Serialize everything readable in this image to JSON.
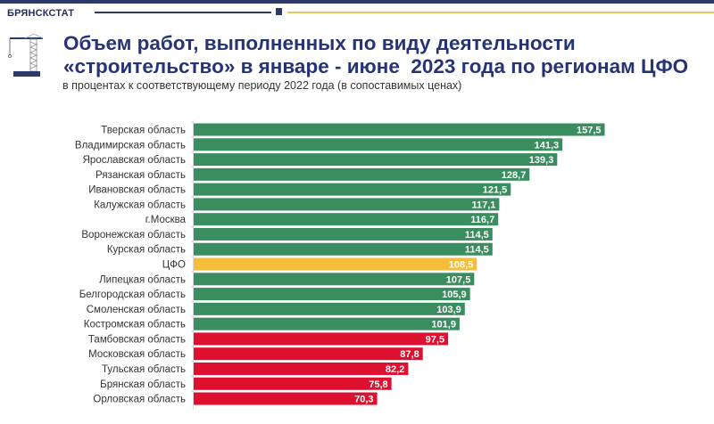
{
  "header": {
    "brand": "БРЯНСКСТАТ",
    "logo_icon": "crane-icon",
    "title_line1": "Объем работ, выполненных по виду деятельности",
    "title_line2": "«строительство» в январе - июне  2023 года по регионам ЦФО",
    "subtitle": "в процентах к соответствующему периоду 2022 года (в сопоставимых ценах)"
  },
  "colors": {
    "growth": "#3a8d5e",
    "average": "#f5bd3c",
    "decline": "#de1030",
    "title": "#263476"
  },
  "chart_data": {
    "type": "bar",
    "orientation": "horizontal",
    "title": "Объем работ, выполненных по виду деятельности «строительство» в январе - июне  2023 года по регионам ЦФО",
    "subtitle": "в процентах к соответствующему периоду 2022 года (в сопоставимых ценах)",
    "xlabel": "",
    "ylabel": "",
    "xlim": [
      0,
      160
    ],
    "grid": false,
    "legend": "none",
    "categories": [
      "Тверская область",
      "Владимирская область",
      "Ярославская область",
      "Рязанская область",
      "Ивановская область",
      "Калужская область",
      "г.Москва",
      "Воронежская область",
      "Курская область",
      "ЦФО",
      "Липецкая область",
      "Белгородская область",
      "Смоленская область",
      "Костромская область",
      "Тамбовская область",
      "Московская область",
      "Тульская область",
      "Брянская область",
      "Орловская область"
    ],
    "values": [
      157.5,
      141.3,
      139.3,
      128.7,
      121.5,
      117.1,
      116.7,
      114.5,
      114.5,
      108.5,
      107.5,
      105.9,
      103.9,
      101.9,
      97.5,
      87.8,
      82.2,
      75.8,
      70.3
    ],
    "labels": [
      "157,5",
      "141,3",
      "139,3",
      "128,7",
      "121,5",
      "117,1",
      "116,7",
      "114,5",
      "114,5",
      "108,5",
      "107,5",
      "105,9",
      "103,9",
      "101,9",
      "97,5",
      "87,8",
      "82,2",
      "75,8",
      "70,3"
    ],
    "highlight": "ЦФО",
    "threshold": 100
  }
}
